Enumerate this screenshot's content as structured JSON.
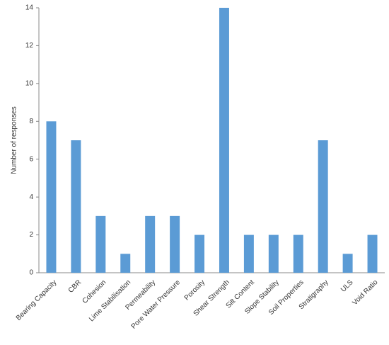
{
  "chart_data": {
    "type": "bar",
    "y_label": "Number of responses",
    "categories": [
      "Bearing Capacity",
      "CBR",
      "Cohesion",
      "Lime Stabilisation",
      "Permeability",
      "Pore Water Pressure",
      "Porosity",
      "Shear Strength",
      "Silt Content",
      "Slope Stability",
      "Soil Properties",
      "Stratigraphy",
      "ULS",
      "Void Ratio"
    ],
    "values": [
      8,
      7,
      3,
      1,
      3,
      3,
      2,
      14,
      2,
      2,
      2,
      7,
      1,
      2
    ],
    "color": "#5b9bd5",
    "ylim": [
      0,
      14
    ],
    "yticks": [
      0,
      2,
      4,
      6,
      8,
      10,
      12,
      14
    ],
    "grid": false
  }
}
